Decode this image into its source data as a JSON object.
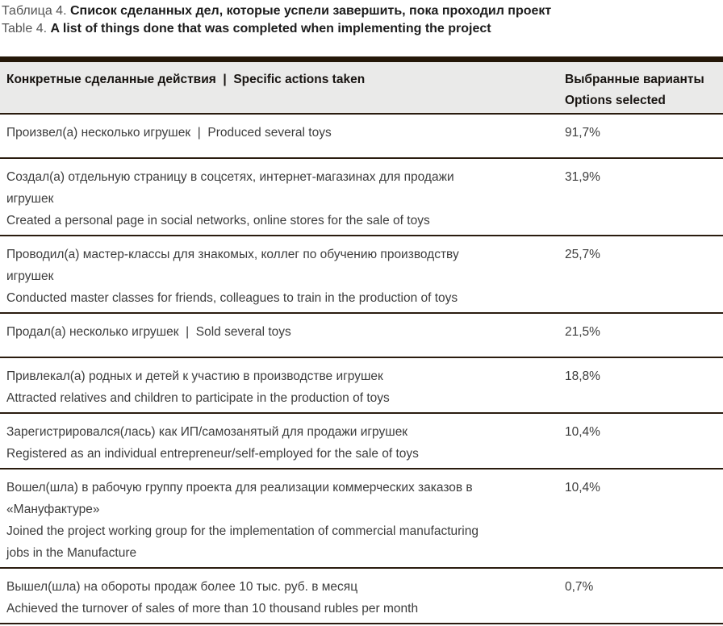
{
  "colors": {
    "bar-dark": "#241708",
    "rule-dark": "#2a1c0f",
    "header-bg": "#eaeae9",
    "text-muted": "#555555",
    "text-strong": "#1c1c1c",
    "text-body": "#3d3d3d"
  },
  "caption": {
    "ru_prefix": "Таблица 4. ",
    "ru_title": "Список сделанных дел, которые успели завершить, пока проходил проект",
    "en_prefix": "Table 4. ",
    "en_title": "A list of things done that was completed when implementing the project"
  },
  "table": {
    "header": {
      "actions": "Конкретные сделанные действия  |  Specific actions taken",
      "options": "Выбранные варианты\nOptions selected"
    },
    "rows": [
      {
        "text": "Произвел(а) несколько игрушек  |  Produced several toys",
        "value": "91,7%"
      },
      {
        "text": "Создал(а) отдельную страницу в соцсетях, интернет-магазинах для продажи\nигрушек\nCreated a personal page in social networks, online stores for the sale of toys",
        "value": "31,9%"
      },
      {
        "text": "Проводил(а) мастер-классы для знакомых, коллег по обучению производству\nигрушек\nConducted master classes for friends, colleagues to train in the production of toys",
        "value": "25,7%"
      },
      {
        "text": "Продал(а) несколько игрушек  |  Sold several toys",
        "value": "21,5%"
      },
      {
        "text": "Привлекал(а) родных и детей к участию в производстве игрушек\nAttracted relatives and children to participate in the production of toys",
        "value": "18,8%"
      },
      {
        "text": "Зарегистрировался(лась) как ИП/самозанятый для продажи игрушек\nRegistered as an individual entrepreneur/self-employed for the sale of toys",
        "value": "10,4%"
      },
      {
        "text": "Вошел(шла) в рабочую группу проекта для реализации коммерческих заказов в\n«Мануфактуре»\nJoined the project working group for the implementation of commercial manufacturing\njobs in the Manufacture",
        "value": "10,4%"
      },
      {
        "text": "Вышел(шла) на обороты продаж более 10 тыс. руб. в месяц\nAchieved the turnover of sales of more than 10 thousand rubles per month",
        "value": "0,7%"
      }
    ]
  }
}
